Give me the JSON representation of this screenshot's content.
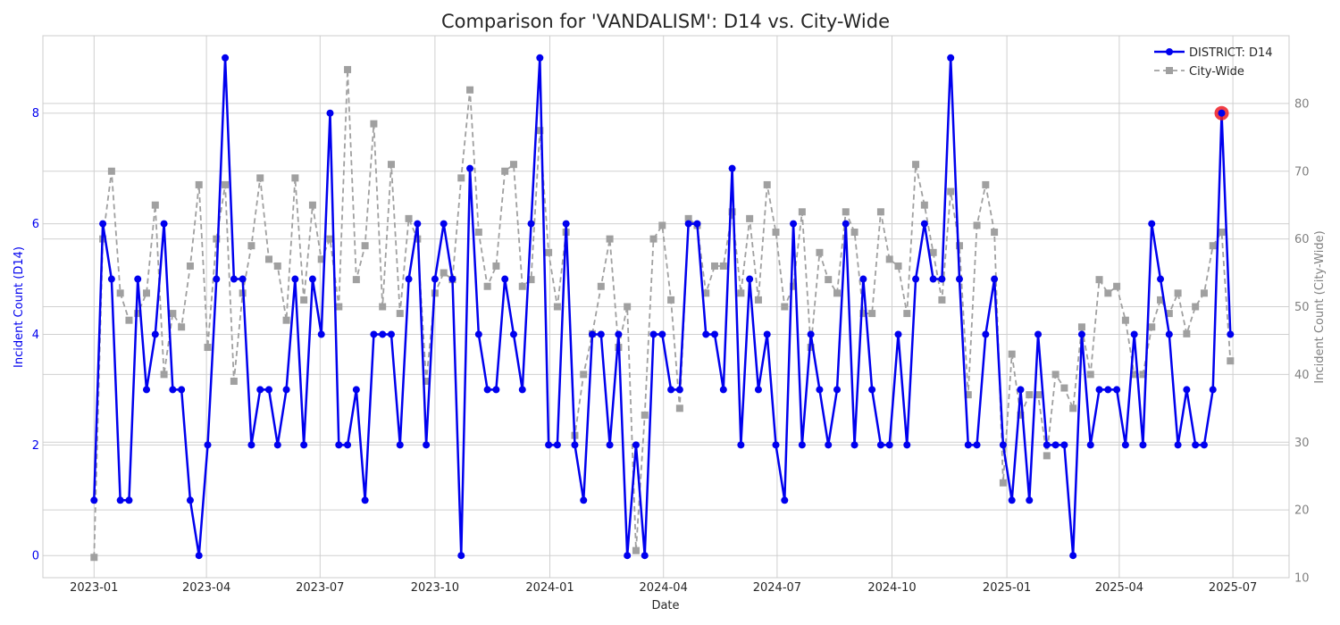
{
  "chart_data": {
    "type": "line",
    "title": "Comparison for 'VANDALISM': D14 vs. City-Wide",
    "xlabel": "Date",
    "ylabel_left": "Incident Count (D14)",
    "ylabel_right": "Incident Count (City-Wide)",
    "x_start": "2023-01-01",
    "x_interval_days": 7,
    "ylim_left": [
      -0.4,
      9.4
    ],
    "ylim_right": [
      10,
      90
    ],
    "xlim": [
      "2022-11-21",
      "2025-08-15"
    ],
    "left_ticks": [
      0,
      2,
      4,
      6,
      8
    ],
    "right_ticks": [
      10,
      20,
      30,
      40,
      50,
      60,
      70,
      80
    ],
    "x_ticks": [
      {
        "date": "2023-01-01",
        "label": "2023-01"
      },
      {
        "date": "2023-04-01",
        "label": "2023-04"
      },
      {
        "date": "2023-07-01",
        "label": "2023-07"
      },
      {
        "date": "2023-10-01",
        "label": "2023-10"
      },
      {
        "date": "2024-01-01",
        "label": "2024-01"
      },
      {
        "date": "2024-04-01",
        "label": "2024-04"
      },
      {
        "date": "2024-07-01",
        "label": "2024-07"
      },
      {
        "date": "2024-10-01",
        "label": "2024-10"
      },
      {
        "date": "2025-01-01",
        "label": "2025-01"
      },
      {
        "date": "2025-04-01",
        "label": "2025-04"
      },
      {
        "date": "2025-07-01",
        "label": "2025-07"
      }
    ],
    "grid": true,
    "legend_position": "top-right",
    "series": [
      {
        "name": "DISTRICT: D14",
        "axis": "left",
        "color": "#0000ee",
        "style": "solid",
        "marker": "circle",
        "values": [
          1,
          6,
          5,
          1,
          1,
          5,
          3,
          4,
          6,
          3,
          3,
          1,
          0,
          2,
          5,
          9,
          5,
          5,
          2,
          3,
          3,
          2,
          3,
          5,
          2,
          5,
          4,
          8,
          2,
          2,
          3,
          1,
          4,
          4,
          4,
          2,
          5,
          6,
          2,
          5,
          6,
          5,
          0,
          7,
          4,
          3,
          3,
          5,
          4,
          3,
          6,
          9,
          2,
          2,
          6,
          2,
          1,
          4,
          4,
          2,
          4,
          0,
          2,
          0,
          4,
          4,
          3,
          3,
          6,
          6,
          4,
          4,
          3,
          7,
          2,
          5,
          3,
          4,
          2,
          1,
          6,
          2,
          4,
          3,
          2,
          3,
          6,
          2,
          5,
          3,
          2,
          2,
          4,
          2,
          5,
          6,
          5,
          5,
          9,
          5,
          2,
          2,
          4,
          5,
          2,
          1,
          3,
          1,
          4,
          2,
          2,
          2,
          0,
          4,
          2,
          3,
          3,
          3,
          2,
          4,
          2,
          6,
          5,
          4,
          2,
          3,
          2,
          2,
          3,
          8,
          4
        ]
      },
      {
        "name": "City-Wide",
        "axis": "right",
        "color": "#a0a0a0",
        "style": "dashed",
        "marker": "square",
        "values": [
          13,
          60,
          70,
          52,
          48,
          49,
          52,
          65,
          40,
          49,
          47,
          56,
          68,
          44,
          60,
          68,
          39,
          52,
          59,
          69,
          57,
          56,
          48,
          69,
          51,
          65,
          57,
          60,
          50,
          85,
          54,
          59,
          77,
          50,
          71,
          49,
          63,
          60,
          39,
          52,
          55,
          54,
          69,
          82,
          61,
          53,
          56,
          70,
          71,
          53,
          54,
          76,
          58,
          50,
          61,
          31,
          40,
          46,
          53,
          60,
          44,
          50,
          14,
          34,
          60,
          62,
          51,
          35,
          63,
          62,
          52,
          56,
          56,
          64,
          52,
          63,
          51,
          68,
          61,
          50,
          53,
          64,
          44,
          58,
          54,
          52,
          64,
          61,
          49,
          49,
          64,
          57,
          56,
          49,
          71,
          65,
          58,
          51,
          67,
          59,
          37,
          62,
          68,
          61,
          24,
          43,
          34,
          37,
          37,
          28,
          40,
          38,
          35,
          47,
          40,
          54,
          52,
          53,
          48,
          40,
          40,
          47,
          51,
          49,
          52,
          46,
          50,
          52,
          59,
          61,
          42
        ]
      }
    ],
    "highlight": {
      "series": "DISTRICT: D14",
      "index": 129,
      "value": 8,
      "color": "#ee1c25"
    }
  }
}
